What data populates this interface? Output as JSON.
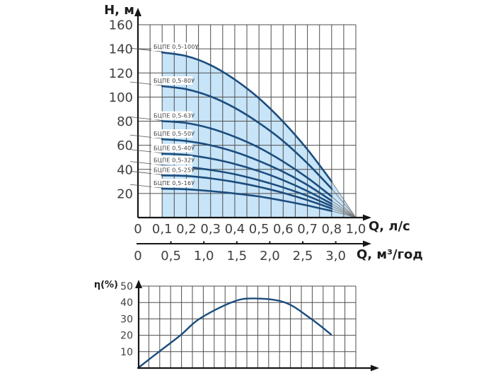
{
  "colors": {
    "curve": "#1b4c7e",
    "shade": "#c7e4f8",
    "grid": "#4e4e4e",
    "axis": "#161616",
    "fan": "#7e7e7e",
    "leader": "#4e4e4e",
    "tick_text": "#3f3f3f",
    "curve_label_text": "#222222",
    "curve_label_bg": "#ffffff"
  },
  "chart_data": [
    {
      "type": "line",
      "title": "Pump head-flow curves",
      "ylabel": "H, м",
      "xlabel": "Q, л/с",
      "xlabel2": "Q, м³/год",
      "ylim": [
        0,
        160
      ],
      "y_ticks": [
        20,
        40,
        60,
        80,
        100,
        120,
        140,
        160
      ],
      "x_ticks": [
        "0",
        "0,1",
        "0,2",
        "0,3",
        "0,4",
        "0,5",
        "0,6",
        "0,7",
        "0,8",
        "1,0"
      ],
      "x2_ticks": [
        "0",
        "0,5",
        "1,0",
        "1,5",
        "2,0",
        "2,5",
        "3,0"
      ],
      "grid": "on",
      "q_lps": [
        0.1,
        0.2,
        0.3,
        0.4,
        0.5,
        0.6,
        0.7,
        0.8,
        0.9
      ],
      "series": [
        {
          "name": "БЦПЕ 0,5-100У",
          "h": [
            137,
            134,
            126.5,
            114.5,
            99,
            79.5,
            56.5,
            30,
            0
          ]
        },
        {
          "name": "БЦПЕ 0,5-80У",
          "h": [
            109,
            106.5,
            100.5,
            91,
            78.5,
            63.5,
            45,
            24,
            0
          ]
        },
        {
          "name": "БЦПЕ 0,5-63У",
          "h": [
            80,
            78.5,
            74,
            67,
            58,
            46.5,
            33,
            17.5,
            0
          ]
        },
        {
          "name": "БЦПЕ 0,5-50У",
          "h": [
            65,
            63.5,
            60,
            54.5,
            47,
            38,
            27,
            14,
            0
          ]
        },
        {
          "name": "БЦПЕ 0,5-40У",
          "h": [
            53,
            52,
            49,
            44.5,
            38.5,
            31,
            22,
            11.5,
            0
          ]
        },
        {
          "name": "БЦПЕ 0,5-32У",
          "h": [
            43,
            42,
            39.5,
            36,
            31,
            25,
            18,
            9.5,
            0
          ]
        },
        {
          "name": "БЦПЕ 0,5-25У",
          "h": [
            35,
            34.5,
            32.5,
            29.5,
            25.5,
            20.5,
            14.5,
            7.5,
            0
          ]
        },
        {
          "name": "БЦПЕ 0,5-16У",
          "h": [
            24,
            23.5,
            22,
            20,
            17.5,
            14,
            10,
            5.5,
            0
          ]
        }
      ],
      "shaded_region": {
        "bounded_by_series": "БЦПЕ 0,5-100У",
        "from_q": 0.1,
        "to_q": 0.9
      },
      "convergence_point": {
        "q": 0.9,
        "h": 0
      },
      "thin_tail_from_q": 0.8
    },
    {
      "type": "line",
      "title": "Pump efficiency curve",
      "ylabel": "η(%)",
      "ylim": [
        0,
        50
      ],
      "y_ticks": [
        10,
        20,
        30,
        40,
        50
      ],
      "grid": "on",
      "points_frac_eta": [
        [
          0,
          0
        ],
        [
          0.097,
          10
        ],
        [
          0.195,
          20
        ],
        [
          0.282,
          30
        ],
        [
          0.428,
          40
        ],
        [
          0.526,
          42.5
        ],
        [
          0.675,
          40
        ],
        [
          0.795,
          30
        ],
        [
          0.886,
          20.5
        ]
      ]
    }
  ]
}
